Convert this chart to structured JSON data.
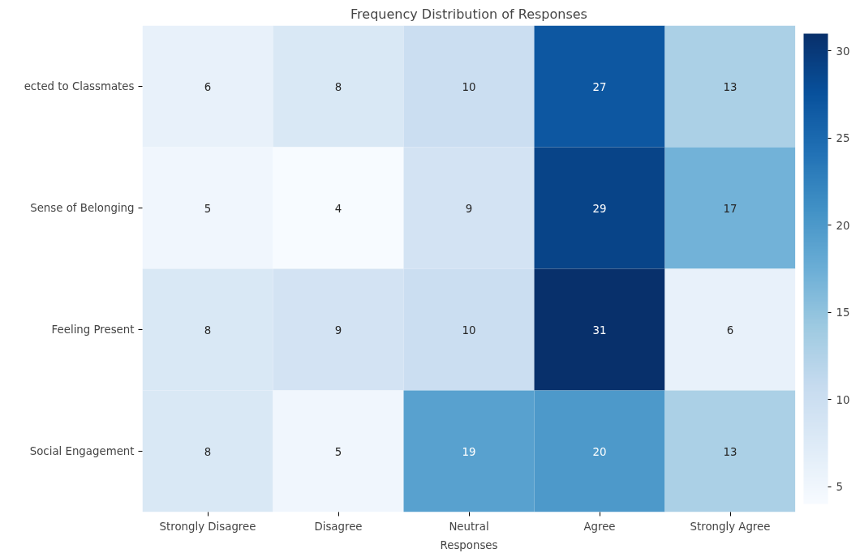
{
  "chart_data": {
    "type": "heatmap",
    "title": "Frequency Distribution of Responses",
    "xlabel": "Responses",
    "categories": [
      "Strongly Disagree",
      "Disagree",
      "Neutral",
      "Agree",
      "Strongly Agree"
    ],
    "y_categories": [
      "ected to Classmates",
      "Sense of Belonging",
      "Feeling Present",
      "Social Engagement"
    ],
    "cells": [
      [
        6,
        8,
        10,
        27,
        13
      ],
      [
        5,
        4,
        9,
        29,
        17
      ],
      [
        8,
        9,
        10,
        31,
        6
      ],
      [
        8,
        5,
        19,
        20,
        13
      ]
    ],
    "clim": [
      4,
      31
    ],
    "cticks": [
      5,
      10,
      15,
      20,
      25,
      30
    ],
    "data_labels": true,
    "grid": false
  }
}
